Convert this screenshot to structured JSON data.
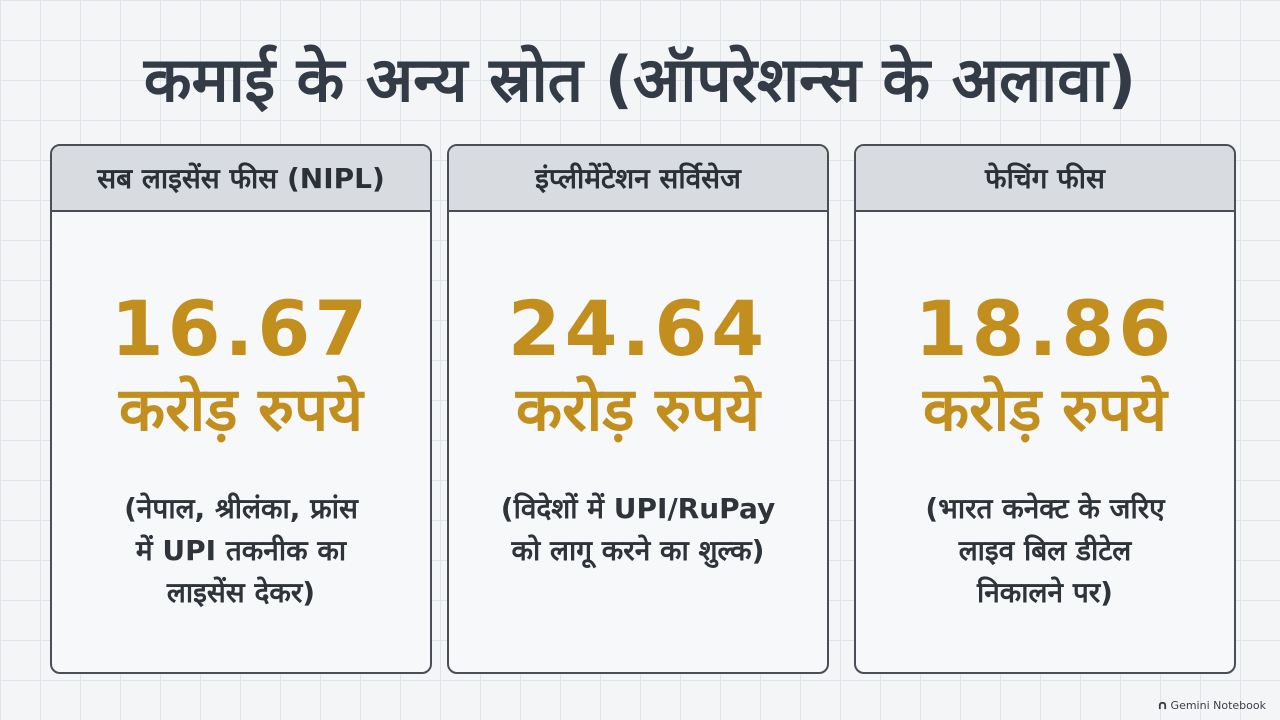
{
  "title": "कमाई के अन्य स्रोत (ऑपरेशन्स के अलावा)",
  "cards": [
    {
      "header": "सब लाइसेंस फीस (NIPL)",
      "amount": "16.67",
      "unit": "करोड़ रुपये",
      "description_lines": [
        "(नेपाल, श्रीलंका, फ्रांस",
        "में UPI तकनीक का",
        "लाइसेंस देकर)"
      ]
    },
    {
      "header": "इंप्लीमेंटेशन सर्विसेज",
      "amount": "24.64",
      "unit": "करोड़ रुपये",
      "description_lines": [
        "(विदेशों में UPI/RuPay",
        "को लागू करने का शुल्क)"
      ]
    },
    {
      "header": "फेचिंग फीस",
      "amount": "18.86",
      "unit": "करोड़ रुपये",
      "description_lines": [
        "(भारत कनेक्ट के जरिए",
        "लाइव बिल डीटेल",
        "निकालने पर)"
      ]
    }
  ],
  "watermark": {
    "icon": "gemini-notebook-icon",
    "text": "Gemini Notebook"
  },
  "colors": {
    "accent": "#c28f1e",
    "title": "#333b47",
    "header_bg": "#d8dbe0",
    "border": "#4a4f57"
  }
}
